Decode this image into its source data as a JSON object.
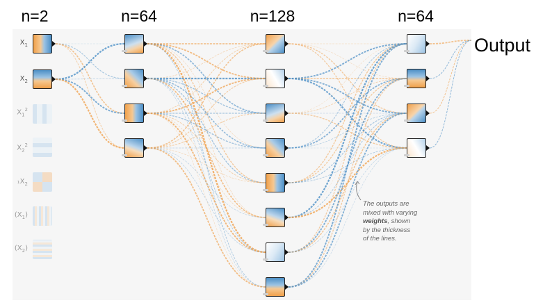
{
  "columns": [
    {
      "label": "n=2"
    },
    {
      "label": "n=64"
    },
    {
      "label": "n=128"
    },
    {
      "label": "n=64"
    }
  ],
  "output_label": "Output",
  "features": [
    "X1",
    "X2",
    "X1²",
    "X2²",
    "X1X2",
    "sin(X1)",
    "sin(X2)"
  ],
  "callout": {
    "line1": "The outputs are",
    "line2": "mixed with varying",
    "bold": "weights",
    "line3_rest": ", shown",
    "line4": "by the thickness",
    "line5": "of the lines."
  },
  "colors": {
    "positive": "#f0a04b",
    "negative": "#4c8fc6",
    "panel": "#f6f6f6"
  }
}
